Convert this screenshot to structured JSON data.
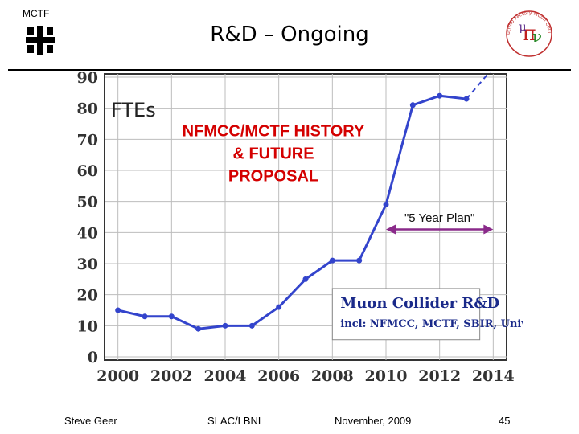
{
  "header": {
    "org": "MCTF",
    "title": "R&D – Ongoing"
  },
  "footer": {
    "author": "Steve Geer",
    "venue": "SLAC/LBNL",
    "date": "November, 2009",
    "page": "45"
  },
  "right_logo_text": "Neutrino Factory Muon Collider",
  "chart_data": {
    "type": "line",
    "title": "FTEs",
    "xlim": [
      1999.5,
      2014.5
    ],
    "ylim": [
      0,
      90
    ],
    "x_ticks": [
      2000,
      2002,
      2004,
      2006,
      2008,
      2010,
      2012,
      2014
    ],
    "y_ticks": [
      0,
      10,
      20,
      30,
      40,
      50,
      60,
      70,
      80,
      90
    ],
    "grid": true,
    "series": [
      {
        "x": [
          2000,
          2001,
          2002,
          2003,
          2004,
          2005,
          2006,
          2007,
          2008,
          2009,
          2010,
          2011,
          2012,
          2013
        ],
        "y": [
          15,
          13,
          13,
          9,
          10,
          10,
          16,
          25,
          31,
          31,
          49,
          81,
          84,
          83
        ]
      }
    ],
    "projection": {
      "x": [
        2013,
        2014
      ],
      "y": [
        83,
        93
      ],
      "label": "??"
    },
    "annotations": {
      "history": "NFMCC/MCTF HISTORY\n& FUTURE\nPROPOSAL",
      "plan": "\"5 Year Plan\"",
      "plan_range": [
        2010,
        2014
      ],
      "box_title": "Muon Collider R&D",
      "box_sub": "incl: NFMCC, MCTF, SBIR, Univ"
    },
    "colors": {
      "line": "#3344cc",
      "history": "#d40000",
      "plan": "#8a2a8a",
      "box_text": "#1a2a8a"
    }
  }
}
